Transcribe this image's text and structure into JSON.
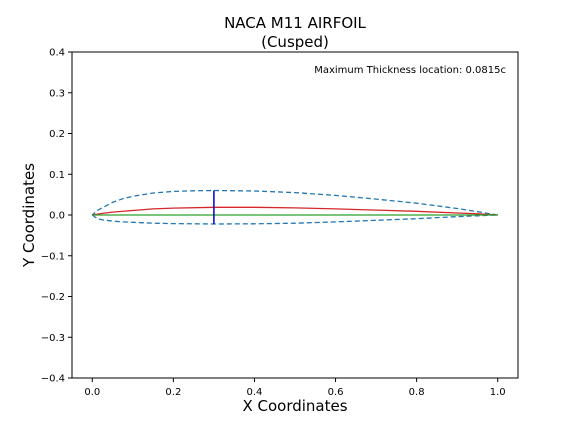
{
  "chart_data": {
    "type": "line",
    "title": "NACA M11 AIRFOIL",
    "subtitle": "(Cusped)",
    "xlabel": "X Coordinates",
    "ylabel": "Y Coordinates",
    "xlim": [
      -0.05,
      1.05
    ],
    "ylim": [
      -0.4,
      0.4
    ],
    "xticks": [
      0.0,
      0.2,
      0.4,
      0.6,
      0.8,
      1.0
    ],
    "xtick_labels": [
      "0.0",
      "0.2",
      "0.4",
      "0.6",
      "0.8",
      "1.0"
    ],
    "yticks": [
      -0.4,
      -0.3,
      -0.2,
      -0.1,
      0.0,
      0.1,
      0.2,
      0.3,
      0.4
    ],
    "ytick_labels": [
      "−0.4",
      "−0.3",
      "−0.2",
      "−0.1",
      "0.0",
      "0.1",
      "0.2",
      "0.3",
      "0.4"
    ],
    "grid": false,
    "annotation": "Maximum Thickness location: 0.0815c",
    "series": [
      {
        "role": "upper-surface",
        "style": "dashed",
        "color": "#1f77b4",
        "x": [
          1.0,
          0.95,
          0.9,
          0.8,
          0.7,
          0.6,
          0.5,
          0.4,
          0.3,
          0.25,
          0.2,
          0.15,
          0.1,
          0.075,
          0.05,
          0.025,
          0.0125,
          0.0
        ],
        "y": [
          0.0,
          0.008,
          0.016,
          0.029,
          0.039,
          0.048,
          0.055,
          0.059,
          0.06,
          0.0595,
          0.058,
          0.054,
          0.046,
          0.04,
          0.031,
          0.018,
          0.011,
          0.0
        ]
      },
      {
        "role": "lower-surface",
        "style": "dashed",
        "color": "#1f77b4",
        "x": [
          0.0,
          0.0125,
          0.025,
          0.05,
          0.075,
          0.1,
          0.15,
          0.2,
          0.25,
          0.3,
          0.4,
          0.5,
          0.6,
          0.7,
          0.8,
          0.9,
          0.95,
          1.0
        ],
        "y": [
          0.0,
          -0.009,
          -0.012,
          -0.015,
          -0.017,
          -0.018,
          -0.02,
          -0.021,
          -0.0215,
          -0.022,
          -0.0215,
          -0.02,
          -0.017,
          -0.013,
          -0.009,
          -0.004,
          -0.002,
          0.0
        ]
      },
      {
        "role": "camber-line",
        "style": "solid",
        "color": "#d62728",
        "x": [
          0.0,
          0.025,
          0.05,
          0.1,
          0.15,
          0.2,
          0.3,
          0.4,
          0.5,
          0.6,
          0.7,
          0.8,
          0.9,
          0.95,
          1.0
        ],
        "y": [
          0.0,
          0.004,
          0.007,
          0.011,
          0.015,
          0.017,
          0.019,
          0.019,
          0.0175,
          0.015,
          0.012,
          0.009,
          0.005,
          0.003,
          0.0
        ]
      },
      {
        "role": "chord-line",
        "style": "solid",
        "color": "#2ca02c",
        "x": [
          0.0,
          1.0
        ],
        "y": [
          0.0,
          0.0
        ]
      },
      {
        "role": "max-thickness-marker",
        "style": "solid",
        "color": "#0000cc",
        "x": [
          0.3,
          0.3
        ],
        "y": [
          -0.022,
          0.06
        ]
      }
    ]
  }
}
